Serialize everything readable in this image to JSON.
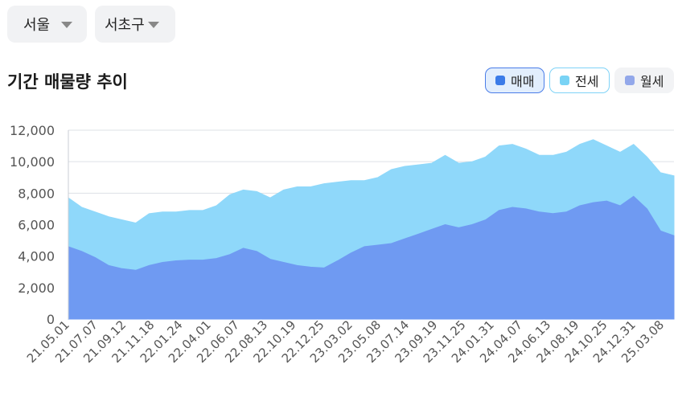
{
  "filters": {
    "region": "서울",
    "district": "서초구"
  },
  "section_title": "기간 매물량 추이",
  "legend": [
    {
      "label": "매매",
      "color": "#3b7be8",
      "active": true
    },
    {
      "label": "전세",
      "color": "#79d3f5",
      "active": true
    },
    {
      "label": "월세",
      "color": "#93a8ea",
      "active": false
    }
  ],
  "chart_data": {
    "type": "area",
    "title": "기간 매물량 추이",
    "xlabel": "",
    "ylabel": "",
    "ylim": [
      0,
      12000
    ],
    "yticks": [
      0,
      2000,
      4000,
      6000,
      8000,
      10000,
      12000
    ],
    "ytick_labels": [
      "0",
      "2,000",
      "4,000",
      "6,000",
      "8,000",
      "10,000",
      "12,000"
    ],
    "x_tick_labels": [
      "21.05.01",
      "21.07.07",
      "21.09.12",
      "21.11.18",
      "22.01.24",
      "22.04.01",
      "22.06.07",
      "22.08.13",
      "22.10.19",
      "22.12.25",
      "23.03.02",
      "23.05.08",
      "23.07.14",
      "23.09.19",
      "23.11.25",
      "24.01.31",
      "24.04.07",
      "24.06.13",
      "24.08.19",
      "24.10.25",
      "24.12.31",
      "25.03.08"
    ],
    "x": [
      "21.05.01",
      "21.06.04",
      "21.07.07",
      "21.08.10",
      "21.09.12",
      "21.10.15",
      "21.11.18",
      "21.12.21",
      "22.01.24",
      "22.02.27",
      "22.04.01",
      "22.05.04",
      "22.06.07",
      "22.07.10",
      "22.08.13",
      "22.09.15",
      "22.10.19",
      "22.11.21",
      "22.12.25",
      "23.01.27",
      "23.03.02",
      "23.04.04",
      "23.05.08",
      "23.06.10",
      "23.07.14",
      "23.08.16",
      "23.09.19",
      "23.10.22",
      "23.11.25",
      "23.12.28",
      "24.01.31",
      "24.03.04",
      "24.04.07",
      "24.05.10",
      "24.06.13",
      "24.07.16",
      "24.08.19",
      "24.09.21",
      "24.10.25",
      "24.11.27",
      "24.12.31",
      "25.02.02",
      "25.03.08",
      "25.04.10",
      "25.05.13",
      "25.06.15"
    ],
    "series": [
      {
        "name": "매매",
        "color": "#6f9af2",
        "values": [
          4600,
          4300,
          3900,
          3400,
          3200,
          3100,
          3400,
          3600,
          3700,
          3750,
          3750,
          3850,
          4100,
          4500,
          4300,
          3800,
          3600,
          3400,
          3300,
          3250,
          3700,
          4200,
          4600,
          4700,
          4800,
          5100,
          5400,
          5700,
          6000,
          5800,
          6000,
          6300,
          6900,
          7100,
          7000,
          6800,
          6700,
          6800,
          7200,
          7400,
          7500,
          7200,
          7800,
          7000,
          5600,
          5300
        ]
      },
      {
        "name": "전세",
        "color": "#8fd8fa",
        "values": [
          7700,
          7100,
          6800,
          6500,
          6300,
          6100,
          6700,
          6800,
          6800,
          6900,
          6900,
          7200,
          7900,
          8200,
          8100,
          7700,
          8200,
          8400,
          8400,
          8600,
          8700,
          8800,
          8800,
          9000,
          9500,
          9700,
          9800,
          9900,
          10400,
          9900,
          10000,
          10300,
          11000,
          11100,
          10800,
          10400,
          10400,
          10600,
          11100,
          11400,
          11000,
          10600,
          11100,
          10300,
          9300,
          9100
        ]
      }
    ]
  }
}
